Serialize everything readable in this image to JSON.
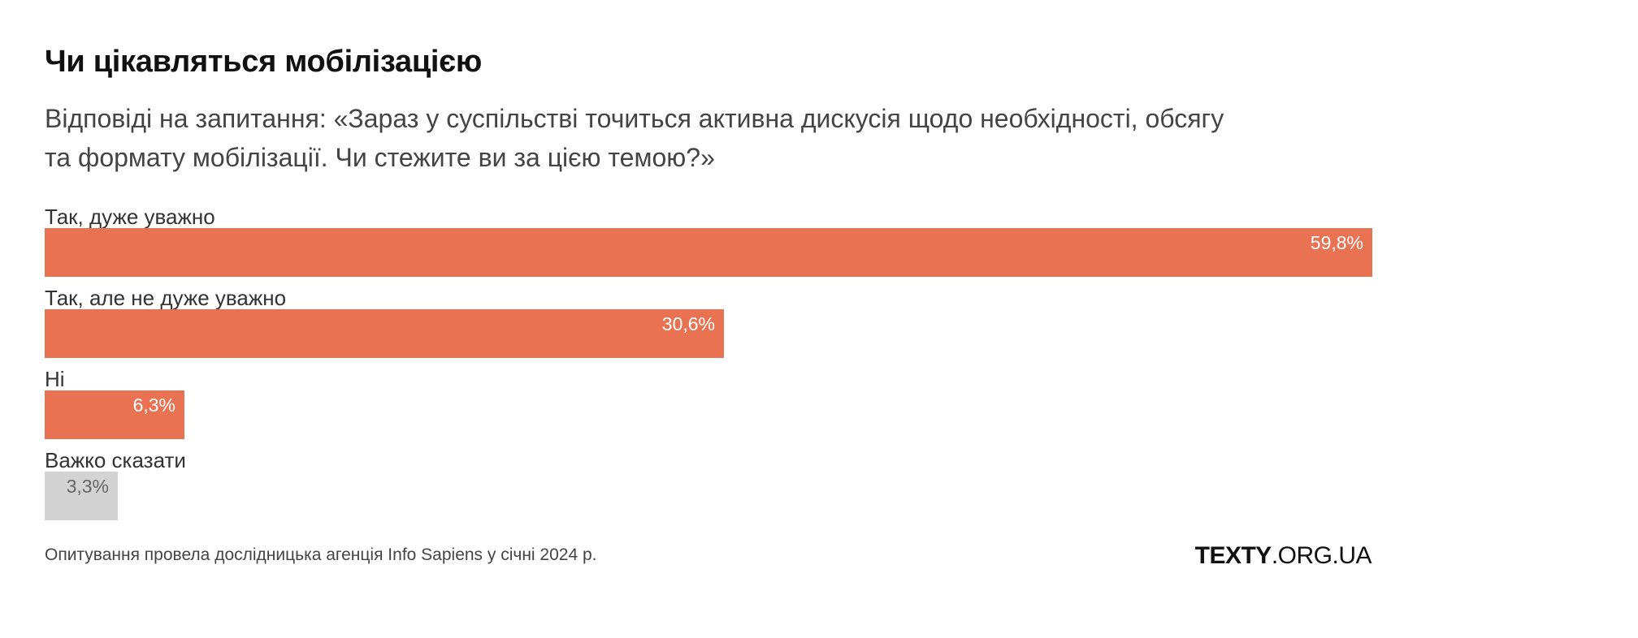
{
  "chart_data": {
    "type": "bar",
    "orientation": "horizontal",
    "title": "Чи цікавляться мобілізацією",
    "subtitle_lines": [
      "Відповіді на запитання: «Зараз у суспільстві точиться активна дискусія щодо необхідності, обсягу",
      "та формату мобілізації. Чи стежите ви за цією темою?»"
    ],
    "categories": [
      "Так, дуже уважно",
      "Так, але не дуже уважно",
      "Ні",
      "Важко сказати"
    ],
    "values": [
      59.8,
      30.6,
      6.3,
      3.3
    ],
    "value_labels": [
      "59,8%",
      "30,6%",
      "6,3%",
      "3,3%"
    ],
    "bar_colors": [
      "#e87252",
      "#e87252",
      "#e87252",
      "#d3d3d3"
    ],
    "value_label_colors": [
      "#ffffff",
      "#ffffff",
      "#ffffff",
      "#666666"
    ],
    "xlim": [
      0,
      59.8
    ],
    "grid": false
  },
  "footnote": "Опитування провела дослідницька агенція Info Sapiens у січні 2024 р.",
  "logo": {
    "bold_part": "TEXTY",
    "rest": ".ORG.UA"
  }
}
